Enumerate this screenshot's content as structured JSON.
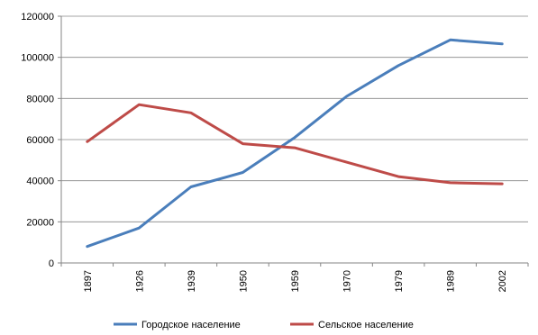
{
  "chart_data": {
    "type": "line",
    "title": "",
    "xlabel": "",
    "ylabel": "",
    "categories": [
      "1897",
      "1926",
      "1939",
      "1950",
      "1959",
      "1970",
      "1979",
      "1989",
      "2002"
    ],
    "ylim": [
      0,
      120000
    ],
    "yticks": [
      0,
      20000,
      40000,
      60000,
      80000,
      100000,
      120000
    ],
    "ytick_labels": [
      "0",
      "20000",
      "40000",
      "60000",
      "80000",
      "100000",
      "120000"
    ],
    "grid": true,
    "legend_position": "bottom",
    "series": [
      {
        "name": "Городское население",
        "color": "#4a7ebb",
        "values": [
          8000,
          17000,
          37000,
          44000,
          61000,
          81000,
          96000,
          108500,
          106500
        ]
      },
      {
        "name": "Сельское население",
        "color": "#be4b48",
        "values": [
          59000,
          77000,
          73000,
          58000,
          56000,
          49000,
          42000,
          39000,
          38500
        ]
      }
    ]
  }
}
